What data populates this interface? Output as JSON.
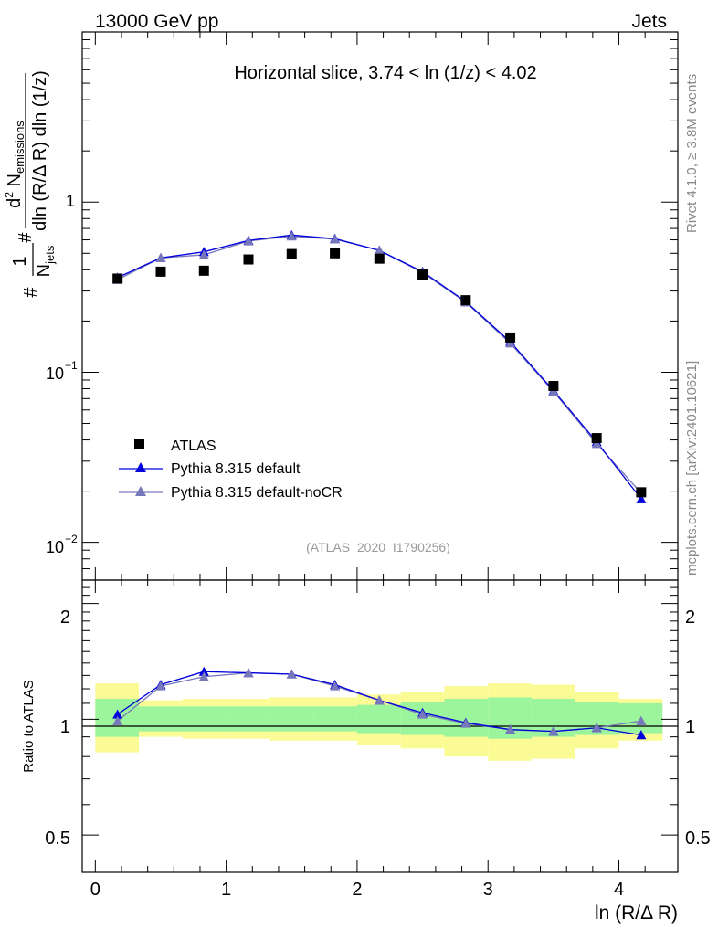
{
  "header": {
    "left": "13000 GeV pp",
    "right": "Jets"
  },
  "side_labels": {
    "rivet": "Rivet 4.1.0, ≥ 3.8M events",
    "mcplots": "mcplots.cern.ch [arXiv:2401.10621]"
  },
  "main_plot": {
    "title": "Horizontal slice, 3.74 < ln (1/z) < 4.02",
    "analysis_id": "(ATLAS_2020_I1790256)",
    "ylabel": "1/N_jets d² N_emissions / dln (R/Δ R) dln (1/z)",
    "ytick_labels": [
      "1",
      "10",
      "10"
    ],
    "ytick_exponents": [
      "",
      "−1",
      "−2"
    ]
  },
  "legend": {
    "atlas": "ATLAS",
    "pythia_default": "Pythia 8.315 default",
    "pythia_nocr": "Pythia 8.315 default-noCR"
  },
  "ratio_plot": {
    "ylabel": "Ratio to ATLAS",
    "ytick_labels_left": [
      "2",
      "1",
      "0.5"
    ],
    "ytick_labels_right": [
      "2",
      "1",
      "0.5"
    ]
  },
  "xaxis": {
    "label": "ln (R/Δ R)",
    "tick_labels": [
      "0",
      "1",
      "2",
      "3",
      "4"
    ]
  },
  "colors": {
    "default": "#0000dd",
    "nocr": "#7777bb",
    "data": "#000000",
    "band_inner": "#9cf59c",
    "band_outer": "#fbfb96"
  },
  "chart_data": {
    "type": "scatter",
    "x": [
      0.17,
      0.5,
      0.83,
      1.17,
      1.5,
      1.83,
      2.17,
      2.5,
      2.83,
      3.17,
      3.5,
      3.83,
      4.17
    ],
    "xlim": [
      -0.1,
      4.45
    ],
    "main_ylim": [
      0.006,
      10
    ],
    "ratio_ylim": [
      0.4,
      2.3
    ],
    "series": [
      {
        "name": "ATLAS",
        "values": [
          0.355,
          0.39,
          0.395,
          0.46,
          0.495,
          0.5,
          0.465,
          0.375,
          0.265,
          0.16,
          0.083,
          0.041,
          0.0197
        ]
      },
      {
        "name": "Pythia 8.315 default",
        "values": [
          0.36,
          0.47,
          0.51,
          0.595,
          0.64,
          0.61,
          0.52,
          0.39,
          0.26,
          0.151,
          0.078,
          0.039,
          0.018
        ]
      },
      {
        "name": "Pythia 8.315 default-noCR",
        "values": [
          0.35,
          0.47,
          0.49,
          0.59,
          0.63,
          0.605,
          0.52,
          0.385,
          0.258,
          0.148,
          0.077,
          0.038,
          0.0195
        ]
      }
    ],
    "ratio_series": [
      {
        "name": "Pythia 8.315 default",
        "values": [
          1.03,
          1.23,
          1.33,
          1.32,
          1.31,
          1.23,
          1.12,
          1.04,
          0.98,
          0.94,
          0.93,
          0.95,
          0.91
        ]
      },
      {
        "name": "Pythia 8.315 default-noCR",
        "values": [
          0.99,
          1.22,
          1.29,
          1.32,
          1.31,
          1.22,
          1.12,
          1.03,
          0.975,
          0.94,
          0.93,
          0.95,
          0.99
        ]
      }
    ],
    "bins": [
      0.0,
      0.333,
      0.667,
      1.0,
      1.333,
      1.667,
      2.0,
      2.333,
      2.667,
      3.0,
      3.333,
      3.667,
      4.0,
      4.333
    ],
    "band_inner": [
      [
        0.9,
        1.13
      ],
      [
        0.93,
        1.08
      ],
      [
        0.93,
        1.08
      ],
      [
        0.93,
        1.08
      ],
      [
        0.93,
        1.08
      ],
      [
        0.93,
        1.08
      ],
      [
        0.92,
        1.09
      ],
      [
        0.91,
        1.11
      ],
      [
        0.9,
        1.13
      ],
      [
        0.89,
        1.14
      ],
      [
        0.9,
        1.13
      ],
      [
        0.91,
        1.11
      ],
      [
        0.92,
        1.1
      ]
    ],
    "band_outer": [
      [
        0.82,
        1.24
      ],
      [
        0.9,
        1.12
      ],
      [
        0.89,
        1.13
      ],
      [
        0.89,
        1.13
      ],
      [
        0.88,
        1.14
      ],
      [
        0.88,
        1.14
      ],
      [
        0.86,
        1.16
      ],
      [
        0.84,
        1.18
      ],
      [
        0.8,
        1.22
      ],
      [
        0.78,
        1.24
      ],
      [
        0.79,
        1.23
      ],
      [
        0.84,
        1.18
      ],
      [
        0.88,
        1.13
      ]
    ]
  }
}
